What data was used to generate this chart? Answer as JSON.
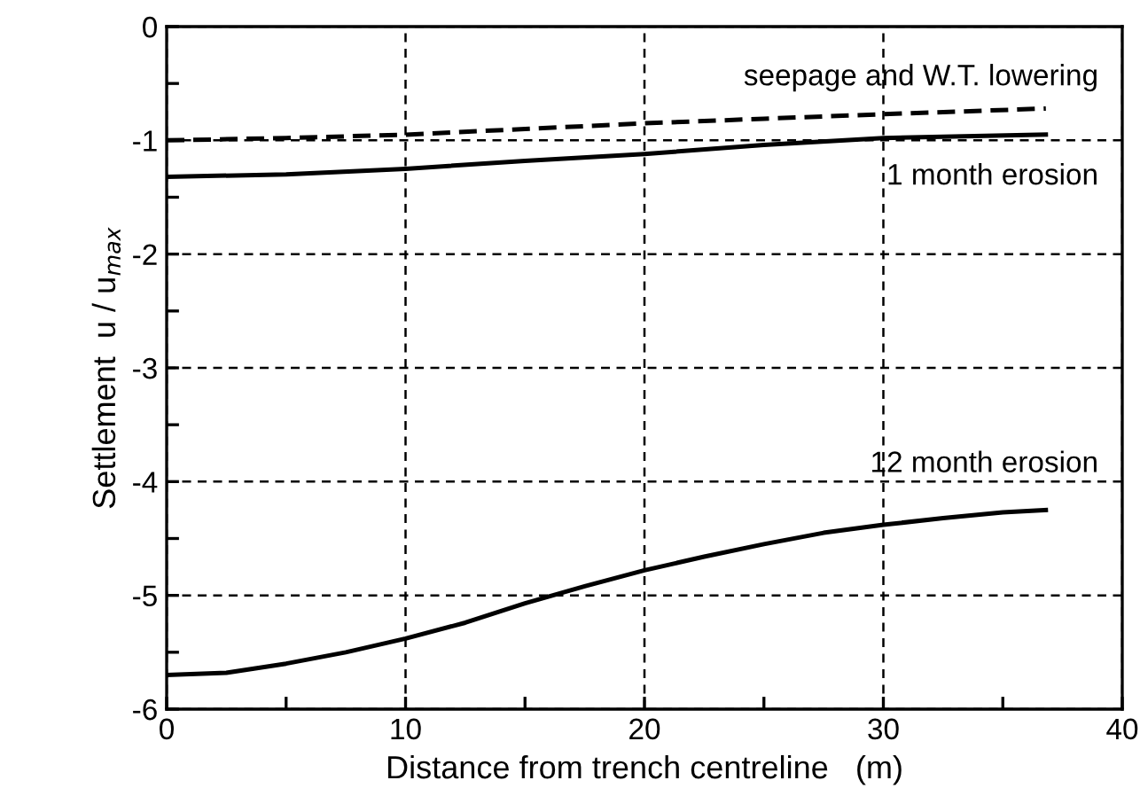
{
  "chart_data": {
    "type": "line",
    "xlabel": "Distance from trench centreline   (m)",
    "ylabel": "Settlement  u / u$_{max}$",
    "xlim": [
      0,
      40
    ],
    "ylim": [
      -6,
      0
    ],
    "xticks": [
      0,
      {
        "value": 5,
        "label": null
      },
      10,
      {
        "value": 15,
        "label": null
      },
      20,
      {
        "value": 25,
        "label": null
      },
      30,
      {
        "value": 35,
        "label": null
      },
      40
    ],
    "yticks": [
      -6,
      {
        "value": -5.5,
        "label": null
      },
      -5,
      {
        "value": -4.5,
        "label": null
      },
      -4,
      {
        "value": -3.5,
        "label": null
      },
      -3,
      {
        "value": -2.5,
        "label": null
      },
      -2,
      {
        "value": -1.5,
        "label": null
      },
      -1,
      {
        "value": -0.5,
        "label": null
      },
      0
    ],
    "grid": true,
    "series": [
      {
        "name": "seepage and W.T. lowering",
        "color": "#000000",
        "line_style": "dashed",
        "x": [
          0,
          5,
          10,
          15,
          20,
          25,
          30,
          36.8
        ],
        "values": [
          -1.0,
          -0.98,
          -0.95,
          -0.9,
          -0.85,
          -0.81,
          -0.77,
          -0.72
        ]
      },
      {
        "name": "1 month erosion",
        "color": "#000000",
        "line_style": "solid",
        "x": [
          0,
          5,
          10,
          15,
          20,
          25,
          30,
          36.8
        ],
        "values": [
          -1.32,
          -1.3,
          -1.25,
          -1.18,
          -1.12,
          -1.04,
          -0.98,
          -0.95
        ]
      },
      {
        "name": "12 month erosion",
        "color": "#000000",
        "line_style": "solid",
        "x": [
          0,
          2.5,
          5,
          7.5,
          10,
          12.5,
          15,
          17.5,
          20,
          22.5,
          25,
          27.5,
          30,
          32.5,
          35,
          36.8
        ],
        "values": [
          -5.7,
          -5.68,
          -5.6,
          -5.5,
          -5.38,
          -5.24,
          -5.07,
          -4.92,
          -4.78,
          -4.66,
          -4.55,
          -4.45,
          -4.38,
          -4.32,
          -4.27,
          -4.25
        ]
      }
    ]
  }
}
